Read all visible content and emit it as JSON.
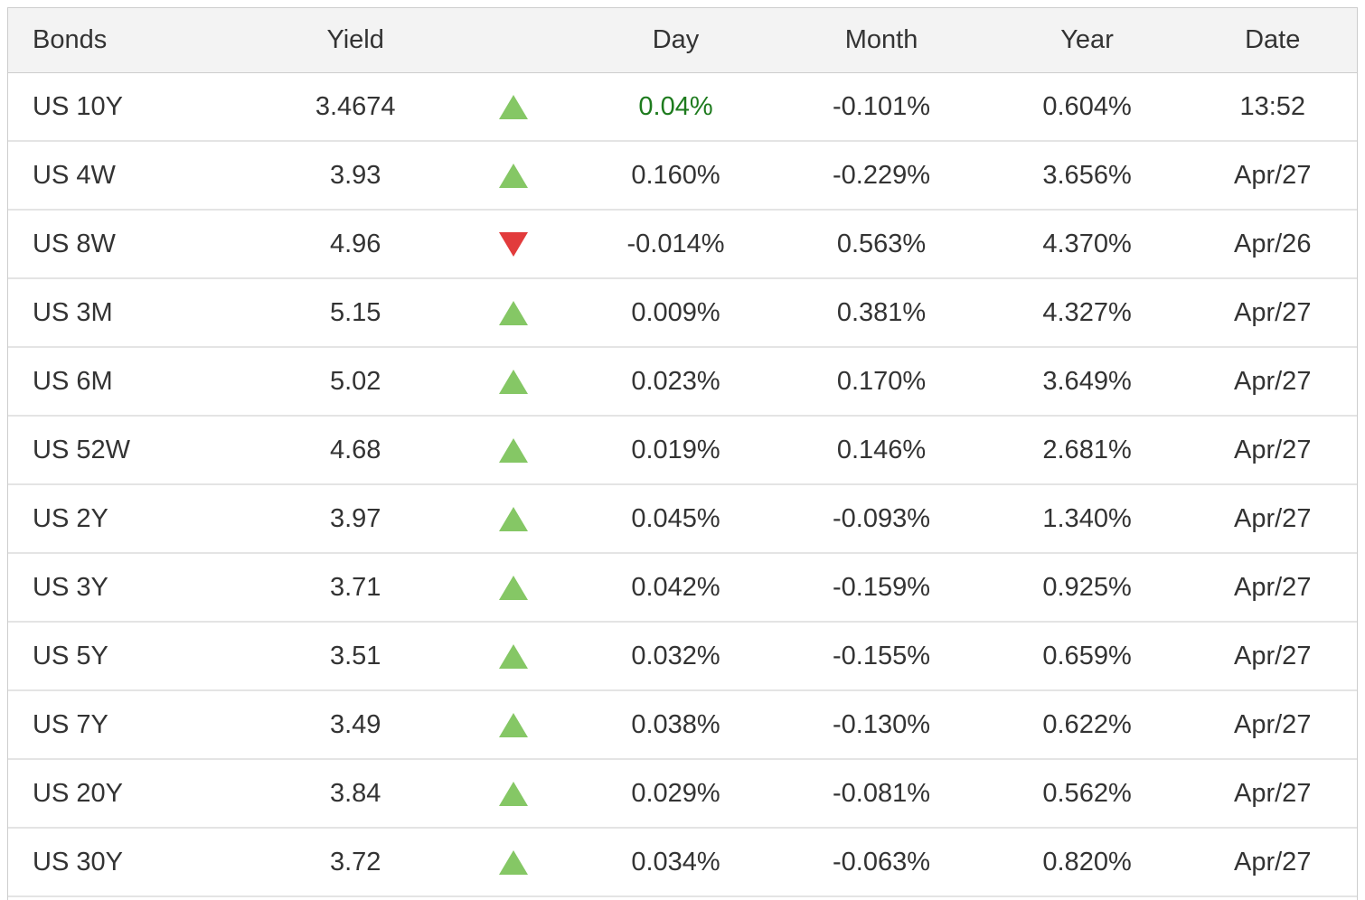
{
  "colors": {
    "up": "#85c765",
    "down": "#e23b3c",
    "day_highlight": "#1e7b1e",
    "header_bg": "#f3f3f3",
    "text": "#333333",
    "border": "#cdcdcd",
    "row_border": "#e4e4e4"
  },
  "icons": {
    "up": "up-triangle-icon",
    "down": "down-triangle-icon"
  },
  "table": {
    "columns": [
      {
        "id": "bonds",
        "label": "Bonds"
      },
      {
        "id": "yield",
        "label": "Yield"
      },
      {
        "id": "arrow",
        "label": ""
      },
      {
        "id": "day",
        "label": "Day"
      },
      {
        "id": "month",
        "label": "Month"
      },
      {
        "id": "year",
        "label": "Year"
      },
      {
        "id": "date",
        "label": "Date"
      }
    ],
    "rows": [
      {
        "bond": "US 10Y",
        "yield": "3.4674",
        "direction": "up",
        "day": "0.04%",
        "day_highlight": true,
        "month": "-0.101%",
        "year": "0.604%",
        "date": "13:52"
      },
      {
        "bond": "US 4W",
        "yield": "3.93",
        "direction": "up",
        "day": "0.160%",
        "day_highlight": false,
        "month": "-0.229%",
        "year": "3.656%",
        "date": "Apr/27"
      },
      {
        "bond": "US 8W",
        "yield": "4.96",
        "direction": "down",
        "day": "-0.014%",
        "day_highlight": false,
        "month": "0.563%",
        "year": "4.370%",
        "date": "Apr/26"
      },
      {
        "bond": "US 3M",
        "yield": "5.15",
        "direction": "up",
        "day": "0.009%",
        "day_highlight": false,
        "month": "0.381%",
        "year": "4.327%",
        "date": "Apr/27"
      },
      {
        "bond": "US 6M",
        "yield": "5.02",
        "direction": "up",
        "day": "0.023%",
        "day_highlight": false,
        "month": "0.170%",
        "year": "3.649%",
        "date": "Apr/27"
      },
      {
        "bond": "US 52W",
        "yield": "4.68",
        "direction": "up",
        "day": "0.019%",
        "day_highlight": false,
        "month": "0.146%",
        "year": "2.681%",
        "date": "Apr/27"
      },
      {
        "bond": "US 2Y",
        "yield": "3.97",
        "direction": "up",
        "day": "0.045%",
        "day_highlight": false,
        "month": "-0.093%",
        "year": "1.340%",
        "date": "Apr/27"
      },
      {
        "bond": "US 3Y",
        "yield": "3.71",
        "direction": "up",
        "day": "0.042%",
        "day_highlight": false,
        "month": "-0.159%",
        "year": "0.925%",
        "date": "Apr/27"
      },
      {
        "bond": "US 5Y",
        "yield": "3.51",
        "direction": "up",
        "day": "0.032%",
        "day_highlight": false,
        "month": "-0.155%",
        "year": "0.659%",
        "date": "Apr/27"
      },
      {
        "bond": "US 7Y",
        "yield": "3.49",
        "direction": "up",
        "day": "0.038%",
        "day_highlight": false,
        "month": "-0.130%",
        "year": "0.622%",
        "date": "Apr/27"
      },
      {
        "bond": "US 20Y",
        "yield": "3.84",
        "direction": "up",
        "day": "0.029%",
        "day_highlight": false,
        "month": "-0.081%",
        "year": "0.562%",
        "date": "Apr/27"
      },
      {
        "bond": "US 30Y",
        "yield": "3.72",
        "direction": "up",
        "day": "0.034%",
        "day_highlight": false,
        "month": "-0.063%",
        "year": "0.820%",
        "date": "Apr/27"
      }
    ]
  }
}
